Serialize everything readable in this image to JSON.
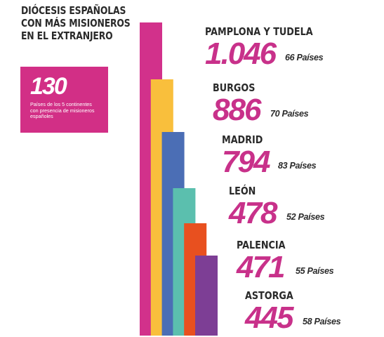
{
  "title_lines": [
    "DIÓCESIS ESPAÑOLAS",
    "CON MÁS MISIONEROS",
    "EN EL EXTRANJERO"
  ],
  "infobox": {
    "number": "130",
    "text_lines": [
      "Países de los 5 continentes",
      "con presencia de misioneros",
      "españoles"
    ],
    "color": "#d22f86"
  },
  "chart_data": {
    "type": "bar",
    "title": "DIÓCESIS ESPAÑOLAS CON MÁS MISIONEROS EN EL EXTRANJERO",
    "categories": [
      "PAMPLONA Y TUDELA",
      "BURGOS",
      "MADRID",
      "LEÓN",
      "PALENCIA",
      "ASTORGA"
    ],
    "values": [
      1046,
      886,
      794,
      478,
      471,
      445
    ],
    "value_labels": [
      "1.046",
      "886",
      "794",
      "478",
      "471",
      "445"
    ],
    "countries": [
      66,
      70,
      83,
      52,
      55,
      58
    ],
    "countries_labels": [
      "66 Países",
      "70 Países",
      "83 Países",
      "52 Países",
      "55 Países",
      "58 Países"
    ],
    "colors": [
      "#d2318b",
      "#f9bf3c",
      "#4b6eb5",
      "#5bbfae",
      "#e8501f",
      "#7d3e95"
    ],
    "value_color": "#c8318a"
  }
}
